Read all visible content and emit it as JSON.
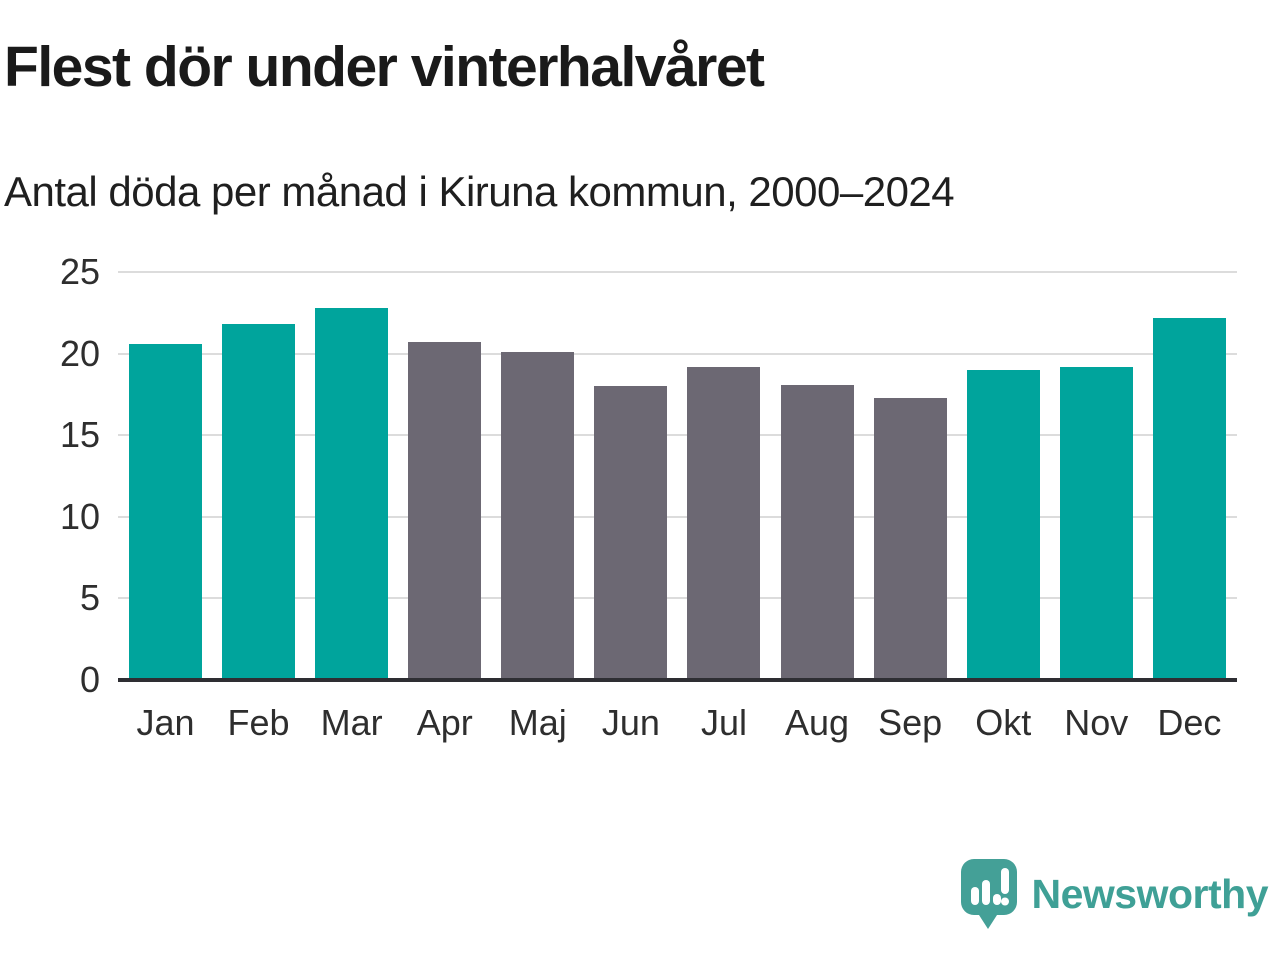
{
  "header": {
    "title": "Flest dör under vinterhalvåret",
    "subtitle": "Antal döda per månad i Kiruna kommun, 2000–2024"
  },
  "chart_data": {
    "type": "bar",
    "categories": [
      "Jan",
      "Feb",
      "Mar",
      "Apr",
      "Maj",
      "Jun",
      "Jul",
      "Aug",
      "Sep",
      "Okt",
      "Nov",
      "Dec"
    ],
    "values": [
      20.6,
      21.8,
      22.8,
      20.7,
      20.1,
      18.0,
      19.2,
      18.1,
      17.3,
      19.0,
      19.2,
      22.2
    ],
    "bar_color_keys": [
      "highlight",
      "highlight",
      "highlight",
      "muted",
      "muted",
      "muted",
      "muted",
      "muted",
      "muted",
      "highlight",
      "highlight",
      "highlight"
    ],
    "title": "Flest dör under vinterhalvåret",
    "subtitle": "Antal döda per månad i Kiruna kommun, 2000–2024",
    "xlabel": "",
    "ylabel": "",
    "ylim": [
      0,
      25
    ],
    "yticks": [
      0,
      5,
      10,
      15,
      20,
      25
    ],
    "grid": true,
    "legend_position": "none",
    "colors": {
      "highlight": "#00a49c",
      "muted": "#6c6873",
      "gridline": "#dcdcdc",
      "axis_line": "#2e2e33",
      "tick_text": "#2e2e2e"
    }
  },
  "footer": {
    "brand": "Newsworthy",
    "brand_color": "#3fa096",
    "logo_icon": "newsworthy-speech-bubble-barchart-icon"
  }
}
